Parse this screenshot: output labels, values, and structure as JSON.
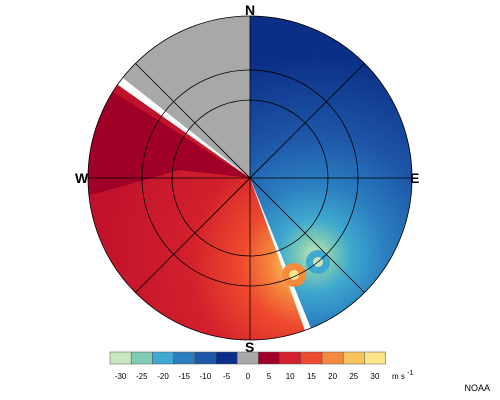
{
  "compass": {
    "north": "N",
    "south": "S",
    "west": "W",
    "east": "E"
  },
  "legend": {
    "ticks": [
      "-30",
      "-25",
      "-20",
      "-15",
      "-10",
      "-5",
      "0",
      "5",
      "10",
      "15",
      "20",
      "25",
      "30"
    ],
    "unit": "m s",
    "unit_exp": "-1",
    "bins": [
      {
        "color": "#c8e6c0"
      },
      {
        "color": "#7fcbb4"
      },
      {
        "color": "#3fa9cf"
      },
      {
        "color": "#2b7fc0"
      },
      {
        "color": "#1e56a8"
      },
      {
        "color": "#0b2f86"
      },
      {
        "color": "#a8a8a8"
      },
      {
        "color": "#a00028"
      },
      {
        "color": "#d2202c"
      },
      {
        "color": "#ee4a2e"
      },
      {
        "color": "#f58a3e"
      },
      {
        "color": "#f9c25c"
      },
      {
        "color": "#fbe48a"
      }
    ]
  },
  "credit": "NOAA"
}
